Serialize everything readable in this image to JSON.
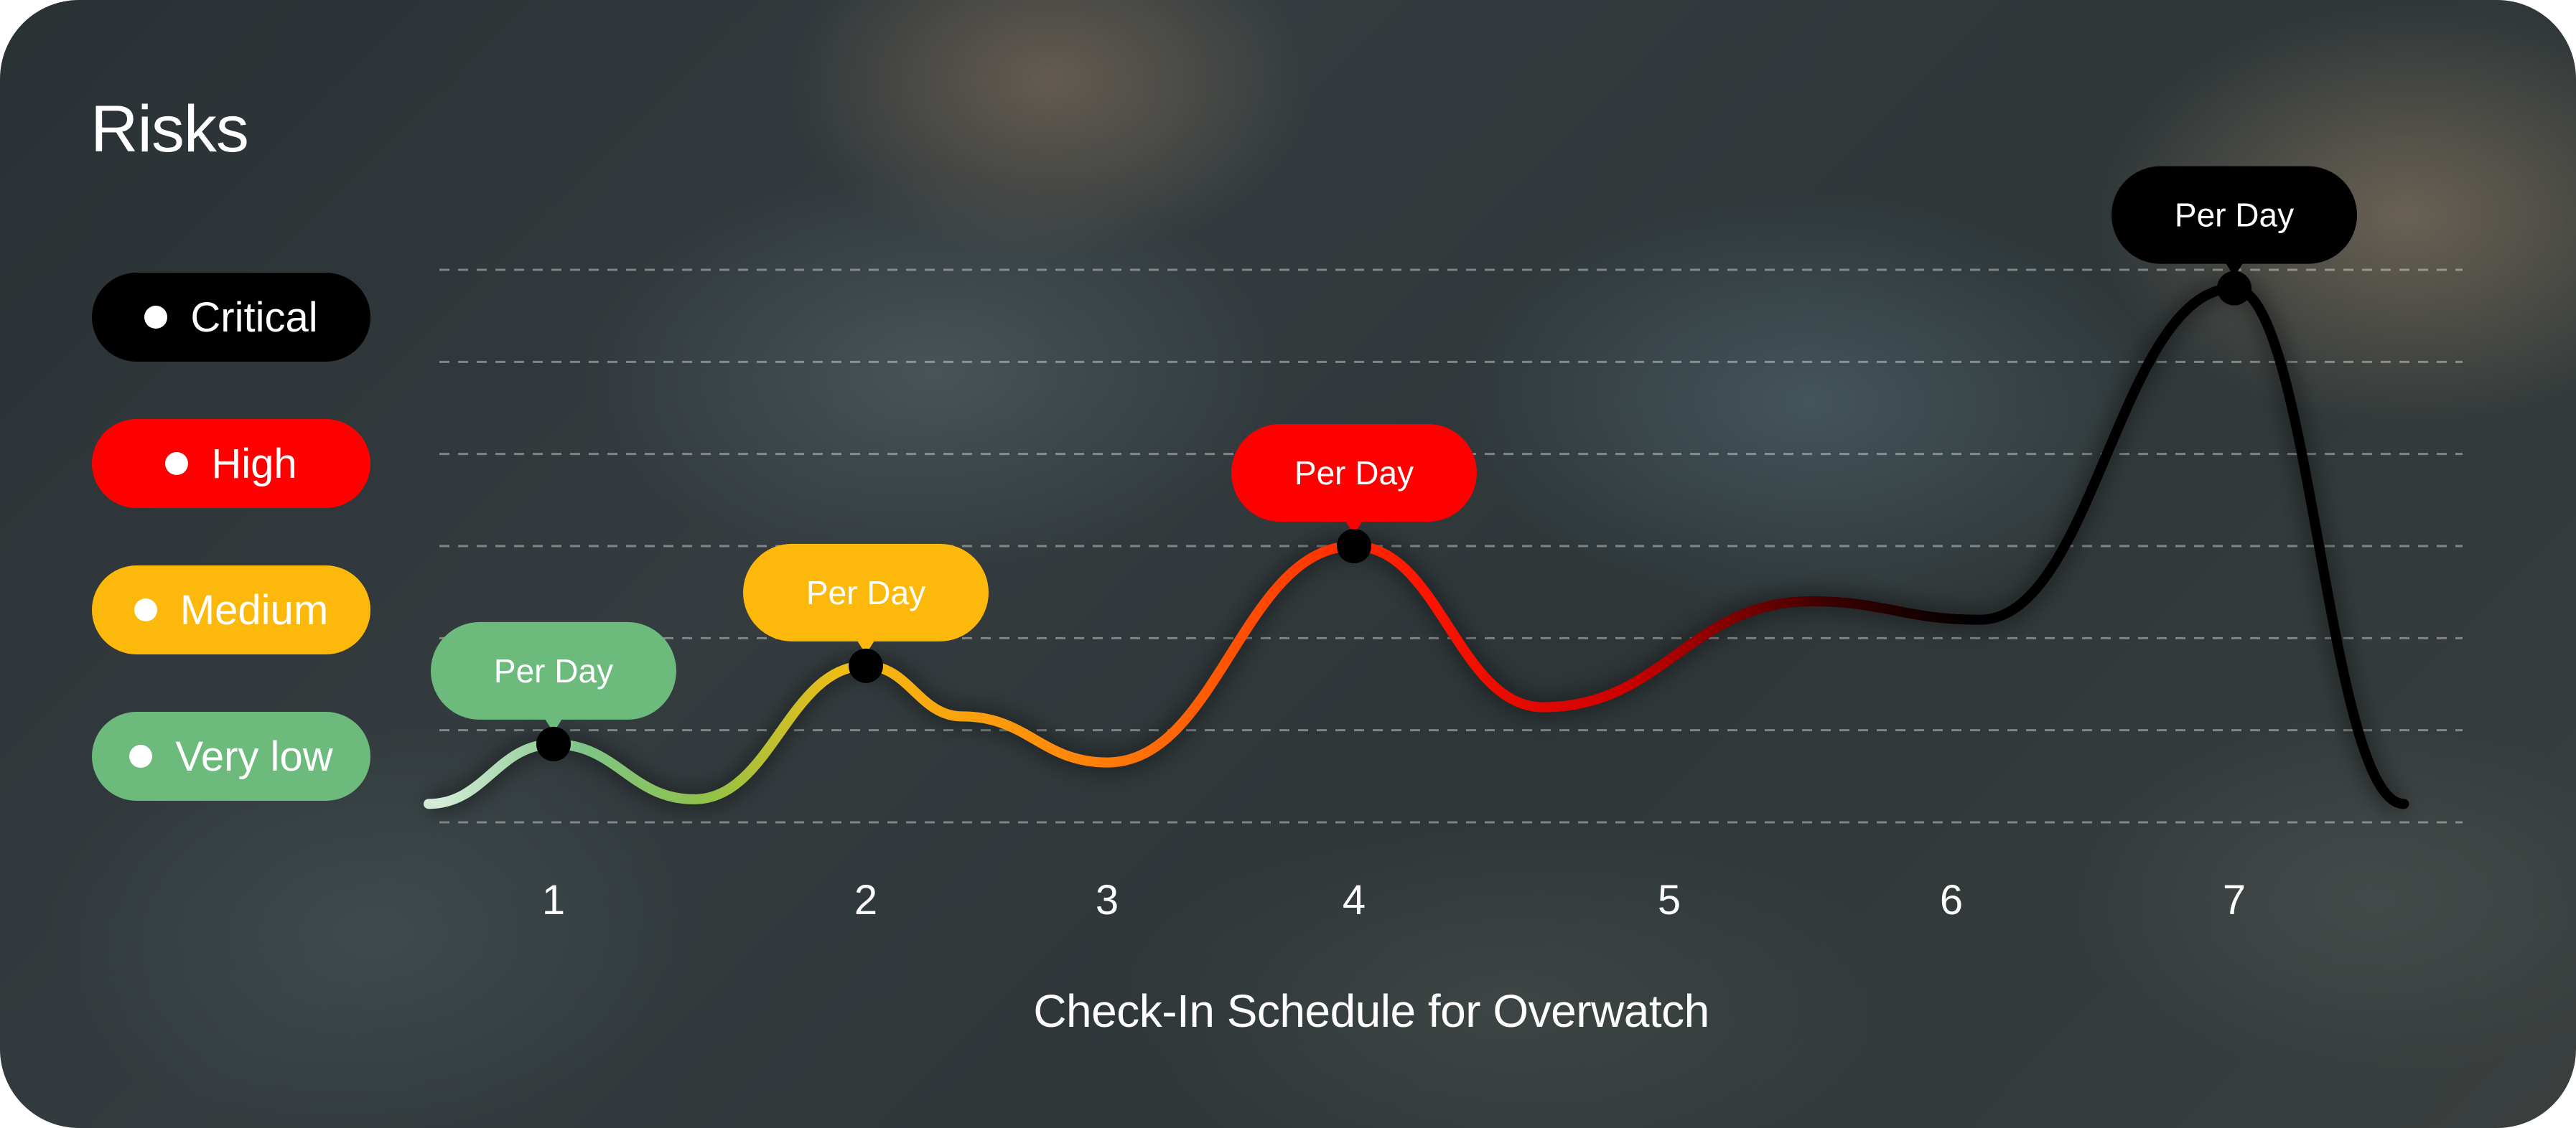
{
  "title": "Risks",
  "legend": [
    {
      "label": "Critical",
      "color": "#000000"
    },
    {
      "label": "High",
      "color": "#ff0000"
    },
    {
      "label": "Medium",
      "color": "#fdb90b"
    },
    {
      "label": "Very low",
      "color": "#6cba7c"
    }
  ],
  "chart_data": {
    "type": "line",
    "xlabel": "Check-In Schedule for Overwatch",
    "ylabel": "",
    "x_ticks": [
      "1",
      "2",
      "3",
      "4",
      "5",
      "6",
      "7"
    ],
    "ylim": [
      0,
      6
    ],
    "grid": true,
    "legend_position": "left",
    "curve": "smooth",
    "series": [
      {
        "points": [
          {
            "x": 0.6,
            "y": 0.2
          },
          {
            "x": 1,
            "y": 0.85
          },
          {
            "x": 1.45,
            "y": 0.25
          },
          {
            "x": 2,
            "y": 1.7
          },
          {
            "x": 2.4,
            "y": 1.15
          },
          {
            "x": 3,
            "y": 0.65
          },
          {
            "x": 4,
            "y": 3.0
          },
          {
            "x": 4.6,
            "y": 1.25
          },
          {
            "x": 5.5,
            "y": 2.4
          },
          {
            "x": 6.1,
            "y": 2.2
          },
          {
            "x": 7,
            "y": 5.8
          },
          {
            "x": 7.6,
            "y": 0.2
          }
        ]
      }
    ],
    "markers": [
      {
        "x": 1,
        "y": 0.85,
        "label": "Per Day",
        "level": "Very low",
        "color": "#6cba7c"
      },
      {
        "x": 2,
        "y": 1.7,
        "label": "Per Day",
        "level": "Medium",
        "color": "#fdb90b"
      },
      {
        "x": 4,
        "y": 3.0,
        "label": "Per Day",
        "level": "High",
        "color": "#ff0000"
      },
      {
        "x": 7,
        "y": 5.8,
        "label": "Per Day",
        "level": "Critical",
        "color": "#000000"
      }
    ]
  }
}
